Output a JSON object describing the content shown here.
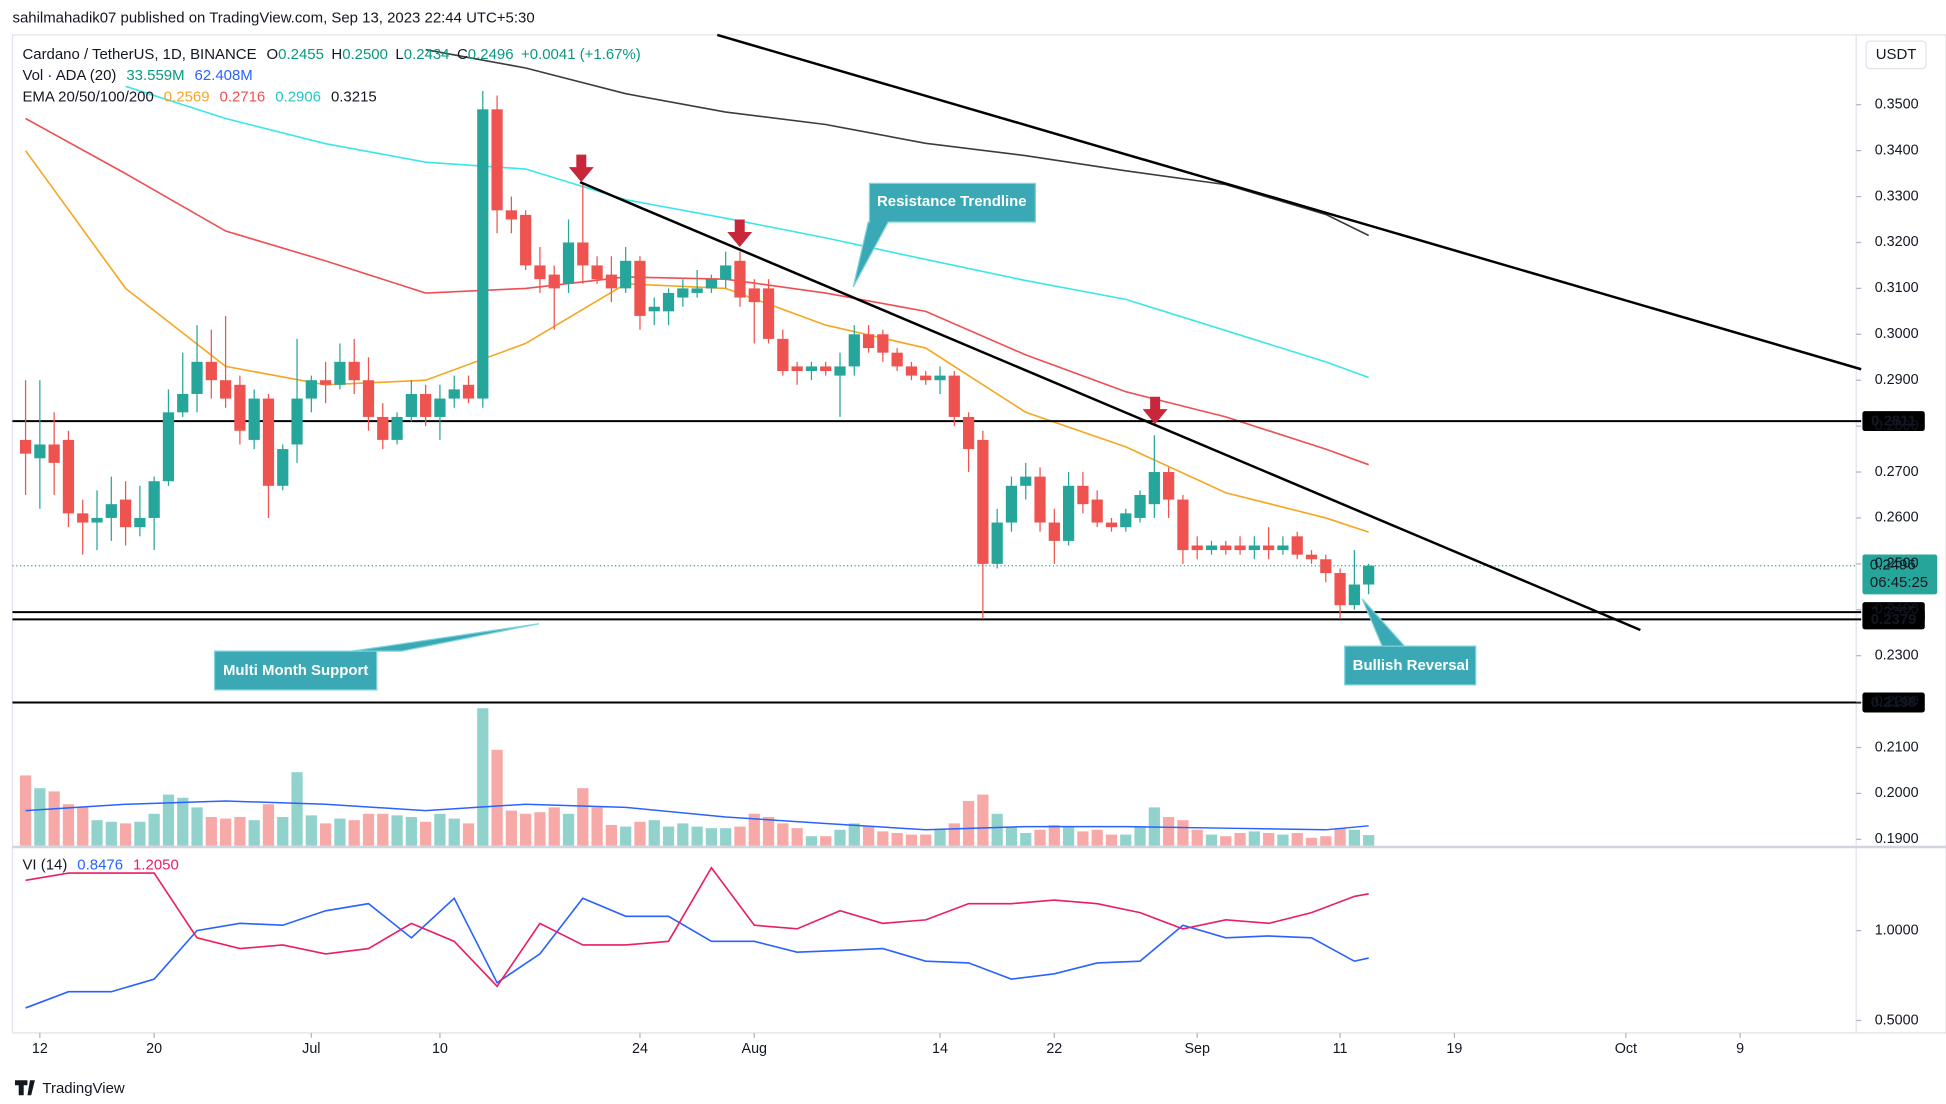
{
  "header": {
    "publisher": "sahilmahadik07 published on TradingView.com, Sep 13, 2023 22:44 UTC+5:30"
  },
  "legend": {
    "symbol": "Cardano / TetherUS, 1D, BINANCE",
    "ohlc": [
      [
        "O",
        "0.2455"
      ],
      [
        "H",
        "0.2500"
      ],
      [
        "L",
        "0.2434"
      ],
      [
        "C",
        "0.2496"
      ]
    ],
    "change": "+0.0041 (+1.67%)",
    "volume_name": "Vol · ADA (20)",
    "volume_values": [
      "33.559M",
      "62.408M"
    ],
    "ema_name": "EMA 20/50/100/200",
    "ema_values": [
      "0.2569",
      "0.2716",
      "0.2906",
      "0.3215"
    ],
    "vi_name": "VI (14)",
    "vi_values": [
      "0.8476",
      "1.2050"
    ]
  },
  "currency": "USDT",
  "countdown": "06:45:25",
  "footer": "TradingView",
  "annotations": [
    "Resistance Trendline",
    "Multi Month Support",
    "Bullish Reversal"
  ],
  "chart_data": {
    "type": "candlestick",
    "x": [
      "Jun 11",
      "Jun 12",
      "Jun 13",
      "Jun 14",
      "Jun 15",
      "Jun 16",
      "Jun 17",
      "Jun 18",
      "Jun 19",
      "Jun 20",
      "Jun 21",
      "Jun 22",
      "Jun 23",
      "Jun 24",
      "Jun 25",
      "Jun 26",
      "Jun 27",
      "Jun 28",
      "Jun 29",
      "Jun 30",
      "Jul 1",
      "Jul 2",
      "Jul 3",
      "Jul 4",
      "Jul 5",
      "Jul 6",
      "Jul 7",
      "Jul 8",
      "Jul 9",
      "Jul 10",
      "Jul 11",
      "Jul 12",
      "Jul 13",
      "Jul 14",
      "Jul 15",
      "Jul 16",
      "Jul 17",
      "Jul 18",
      "Jul 19",
      "Jul 20",
      "Jul 21",
      "Jul 22",
      "Jul 23",
      "Jul 24",
      "Jul 25",
      "Jul 26",
      "Jul 27",
      "Jul 28",
      "Jul 29",
      "Jul 30",
      "Jul 31",
      "Aug 1",
      "Aug 2",
      "Aug 3",
      "Aug 4",
      "Aug 5",
      "Aug 6",
      "Aug 7",
      "Aug 8",
      "Aug 9",
      "Aug 10",
      "Aug 11",
      "Aug 12",
      "Aug 13",
      "Aug 14",
      "Aug 15",
      "Aug 16",
      "Aug 17",
      "Aug 18",
      "Aug 19",
      "Aug 20",
      "Aug 21",
      "Aug 22",
      "Aug 23",
      "Aug 24",
      "Aug 25",
      "Aug 26",
      "Aug 27",
      "Aug 28",
      "Aug 29",
      "Aug 30",
      "Aug 31",
      "Sep 1",
      "Sep 2",
      "Sep 3",
      "Sep 4",
      "Sep 5",
      "Sep 6",
      "Sep 7",
      "Sep 8",
      "Sep 9",
      "Sep 10",
      "Sep 11",
      "Sep 12",
      "Sep 13"
    ],
    "candles": [
      [
        0.277,
        0.29,
        0.265,
        0.274
      ],
      [
        0.273,
        0.29,
        0.262,
        0.276
      ],
      [
        0.276,
        0.283,
        0.265,
        0.272
      ],
      [
        0.277,
        0.279,
        0.258,
        0.261
      ],
      [
        0.261,
        0.264,
        0.252,
        0.259
      ],
      [
        0.259,
        0.266,
        0.253,
        0.26
      ],
      [
        0.26,
        0.269,
        0.255,
        0.263
      ],
      [
        0.264,
        0.268,
        0.254,
        0.258
      ],
      [
        0.258,
        0.267,
        0.256,
        0.26
      ],
      [
        0.26,
        0.269,
        0.253,
        0.268
      ],
      [
        0.268,
        0.288,
        0.267,
        0.283
      ],
      [
        0.283,
        0.296,
        0.282,
        0.287
      ],
      [
        0.287,
        0.302,
        0.283,
        0.294
      ],
      [
        0.294,
        0.301,
        0.286,
        0.29
      ],
      [
        0.29,
        0.304,
        0.284,
        0.286
      ],
      [
        0.289,
        0.291,
        0.276,
        0.279
      ],
      [
        0.277,
        0.288,
        0.275,
        0.286
      ],
      [
        0.286,
        0.287,
        0.26,
        0.267
      ],
      [
        0.267,
        0.276,
        0.266,
        0.275
      ],
      [
        0.276,
        0.299,
        0.272,
        0.286
      ],
      [
        0.286,
        0.291,
        0.283,
        0.29
      ],
      [
        0.29,
        0.294,
        0.285,
        0.289
      ],
      [
        0.289,
        0.298,
        0.288,
        0.294
      ],
      [
        0.294,
        0.299,
        0.287,
        0.29
      ],
      [
        0.29,
        0.295,
        0.279,
        0.282
      ],
      [
        0.282,
        0.285,
        0.275,
        0.277
      ],
      [
        0.277,
        0.283,
        0.276,
        0.282
      ],
      [
        0.282,
        0.29,
        0.281,
        0.287
      ],
      [
        0.287,
        0.289,
        0.28,
        0.282
      ],
      [
        0.282,
        0.289,
        0.277,
        0.286
      ],
      [
        0.286,
        0.291,
        0.284,
        0.288
      ],
      [
        0.289,
        0.291,
        0.285,
        0.286
      ],
      [
        0.286,
        0.353,
        0.284,
        0.349
      ],
      [
        0.349,
        0.352,
        0.322,
        0.327
      ],
      [
        0.327,
        0.33,
        0.322,
        0.325
      ],
      [
        0.326,
        0.327,
        0.314,
        0.315
      ],
      [
        0.315,
        0.319,
        0.309,
        0.312
      ],
      [
        0.313,
        0.315,
        0.301,
        0.31
      ],
      [
        0.311,
        0.325,
        0.309,
        0.32
      ],
      [
        0.32,
        0.333,
        0.311,
        0.315
      ],
      [
        0.315,
        0.317,
        0.311,
        0.312
      ],
      [
        0.313,
        0.317,
        0.307,
        0.31
      ],
      [
        0.31,
        0.319,
        0.309,
        0.316
      ],
      [
        0.316,
        0.317,
        0.301,
        0.304
      ],
      [
        0.305,
        0.308,
        0.302,
        0.306
      ],
      [
        0.305,
        0.31,
        0.302,
        0.309
      ],
      [
        0.308,
        0.312,
        0.306,
        0.31
      ],
      [
        0.309,
        0.314,
        0.308,
        0.31
      ],
      [
        0.31,
        0.313,
        0.309,
        0.312
      ],
      [
        0.312,
        0.318,
        0.31,
        0.315
      ],
      [
        0.316,
        0.318,
        0.306,
        0.308
      ],
      [
        0.31,
        0.312,
        0.298,
        0.307
      ],
      [
        0.31,
        0.312,
        0.298,
        0.299
      ],
      [
        0.299,
        0.301,
        0.291,
        0.292
      ],
      [
        0.293,
        0.294,
        0.289,
        0.292
      ],
      [
        0.292,
        0.294,
        0.29,
        0.293
      ],
      [
        0.293,
        0.294,
        0.291,
        0.292
      ],
      [
        0.291,
        0.296,
        0.282,
        0.293
      ],
      [
        0.293,
        0.302,
        0.291,
        0.3
      ],
      [
        0.3,
        0.302,
        0.296,
        0.297
      ],
      [
        0.3,
        0.301,
        0.294,
        0.296
      ],
      [
        0.296,
        0.297,
        0.292,
        0.293
      ],
      [
        0.293,
        0.294,
        0.29,
        0.291
      ],
      [
        0.291,
        0.292,
        0.289,
        0.29
      ],
      [
        0.29,
        0.293,
        0.287,
        0.291
      ],
      [
        0.291,
        0.292,
        0.28,
        0.282
      ],
      [
        0.282,
        0.283,
        0.27,
        0.275
      ],
      [
        0.277,
        0.279,
        0.238,
        0.25
      ],
      [
        0.25,
        0.262,
        0.249,
        0.259
      ],
      [
        0.259,
        0.269,
        0.257,
        0.267
      ],
      [
        0.267,
        0.272,
        0.264,
        0.269
      ],
      [
        0.269,
        0.271,
        0.257,
        0.259
      ],
      [
        0.259,
        0.262,
        0.25,
        0.255
      ],
      [
        0.255,
        0.27,
        0.254,
        0.267
      ],
      [
        0.267,
        0.27,
        0.261,
        0.263
      ],
      [
        0.264,
        0.266,
        0.258,
        0.259
      ],
      [
        0.259,
        0.26,
        0.257,
        0.258
      ],
      [
        0.258,
        0.262,
        0.257,
        0.261
      ],
      [
        0.26,
        0.266,
        0.259,
        0.265
      ],
      [
        0.263,
        0.278,
        0.26,
        0.27
      ],
      [
        0.27,
        0.271,
        0.26,
        0.264
      ],
      [
        0.264,
        0.265,
        0.25,
        0.253
      ],
      [
        0.254,
        0.256,
        0.251,
        0.253
      ],
      [
        0.253,
        0.255,
        0.252,
        0.254
      ],
      [
        0.254,
        0.255,
        0.252,
        0.253
      ],
      [
        0.254,
        0.256,
        0.252,
        0.253
      ],
      [
        0.253,
        0.256,
        0.251,
        0.254
      ],
      [
        0.254,
        0.258,
        0.251,
        0.253
      ],
      [
        0.253,
        0.256,
        0.252,
        0.254
      ],
      [
        0.256,
        0.257,
        0.251,
        0.252
      ],
      [
        0.252,
        0.253,
        0.25,
        0.251
      ],
      [
        0.251,
        0.252,
        0.246,
        0.248
      ],
      [
        0.248,
        0.249,
        0.238,
        0.241
      ],
      [
        0.241,
        0.253,
        0.24,
        0.2455
      ],
      [
        0.2455,
        0.25,
        0.2434,
        0.2496
      ]
    ],
    "volume": [
      220,
      180,
      170,
      130,
      120,
      80,
      75,
      70,
      75,
      100,
      160,
      150,
      120,
      90,
      85,
      90,
      80,
      130,
      90,
      230,
      95,
      70,
      85,
      80,
      100,
      100,
      95,
      90,
      75,
      100,
      85,
      70,
      430,
      300,
      110,
      100,
      105,
      120,
      100,
      180,
      120,
      65,
      60,
      75,
      80,
      60,
      70,
      60,
      55,
      55,
      60,
      100,
      90,
      70,
      55,
      30,
      30,
      50,
      70,
      60,
      45,
      40,
      35,
      35,
      50,
      70,
      140,
      160,
      100,
      60,
      40,
      50,
      65,
      60,
      45,
      50,
      35,
      35,
      60,
      120,
      90,
      80,
      50,
      35,
      30,
      40,
      45,
      40,
      35,
      40,
      25,
      30,
      55,
      50,
      33.559
    ],
    "volume_ylim": [
      0,
      2535
    ],
    "up_color": "#26a69a",
    "down_color": "#ef5350",
    "ylim": [
      0.1886,
      0.3652
    ],
    "yticks": [
      {
        "value": 0.19,
        "label": "0.1900"
      },
      {
        "value": 0.2,
        "label": "0.2000"
      },
      {
        "value": 0.21,
        "label": "0.2100"
      },
      {
        "value": 0.22,
        "label": "0.2200"
      },
      {
        "value": 0.23,
        "label": "0.2300"
      },
      {
        "value": 0.24,
        "label": "0.2400"
      },
      {
        "value": 0.25,
        "label": "0.2500"
      },
      {
        "value": 0.26,
        "label": "0.2600"
      },
      {
        "value": 0.27,
        "label": "0.2700"
      },
      {
        "value": 0.28,
        "label": "0.2800"
      },
      {
        "value": 0.29,
        "label": "0.2900"
      },
      {
        "value": 0.3,
        "label": "0.3000"
      },
      {
        "value": 0.31,
        "label": "0.3100"
      },
      {
        "value": 0.32,
        "label": "0.3200"
      },
      {
        "value": 0.33,
        "label": "0.3300"
      },
      {
        "value": 0.34,
        "label": "0.3400"
      },
      {
        "value": 0.35,
        "label": "0.3500"
      }
    ],
    "levels": [
      0.2811,
      0.2395,
      0.2379,
      0.2198
    ],
    "last_price": 0.2496,
    "xticks": [
      {
        "value": "Jun 12",
        "label": "12"
      },
      {
        "value": "Jun 20",
        "label": "20"
      },
      {
        "value": "Jul 1",
        "label": "Jul"
      },
      {
        "value": "Jul 10",
        "label": "10"
      },
      {
        "value": "Jul 24",
        "label": "24"
      },
      {
        "value": "Aug 1",
        "label": "Aug"
      },
      {
        "value": "Aug 14",
        "label": "14"
      },
      {
        "value": "Aug 22",
        "label": "22"
      },
      {
        "value": "Sep 1",
        "label": "Sep"
      },
      {
        "value": "Sep 11",
        "label": "11"
      },
      {
        "value": "Sep 19",
        "label": "19"
      },
      {
        "value": "Oct 1",
        "label": "Oct"
      },
      {
        "value": "Oct 9",
        "label": "9"
      }
    ],
    "line_x": [
      "Jun 11",
      "Jun 18",
      "Jun 25",
      "Jul 2",
      "Jul 9",
      "Jul 16",
      "Jul 23",
      "Jul 30",
      "Aug 6",
      "Aug 13",
      "Aug 20",
      "Aug 27",
      "Sep 3",
      "Sep 10",
      "Sep 13"
    ],
    "lines": [
      {
        "color": "#f5a623",
        "values": [
          0.34,
          0.31,
          0.293,
          0.289,
          0.29,
          0.298,
          0.311,
          0.31,
          0.302,
          0.297,
          0.283,
          0.2755,
          0.2655,
          0.26,
          0.2569
        ]
      },
      {
        "color": "#ef4f52",
        "values": [
          0.347,
          0.335,
          0.3225,
          0.316,
          0.309,
          0.31,
          0.3125,
          0.312,
          0.309,
          0.305,
          0.2955,
          0.2875,
          0.282,
          0.275,
          0.2716
        ]
      },
      {
        "color": "#3ce6e6",
        "values": [
          null,
          0.354,
          0.347,
          0.3415,
          0.3375,
          0.336,
          0.3293,
          0.3253,
          0.321,
          0.3163,
          0.3117,
          0.3076,
          0.3008,
          0.294,
          0.2906
        ]
      },
      {
        "color": "#3c3c3c",
        "values": [
          null,
          null,
          null,
          null,
          0.362,
          0.358,
          0.3524,
          0.3484,
          0.3457,
          0.3416,
          0.3389,
          0.3356,
          0.3326,
          0.3261,
          0.3215
        ]
      }
    ],
    "volume_ma": {
      "color": "#2962ff",
      "values": [
        110,
        130,
        140,
        130,
        110,
        130,
        120,
        90,
        70,
        50,
        60,
        60,
        55,
        50,
        62.408
      ]
    },
    "vi": {
      "x": [
        "Jun 11",
        "Jun 14",
        "Jun 17",
        "Jun 20",
        "Jun 23",
        "Jun 26",
        "Jun 29",
        "Jul 2",
        "Jul 5",
        "Jul 8",
        "Jul 11",
        "Jul 14",
        "Jul 17",
        "Jul 20",
        "Jul 23",
        "Jul 26",
        "Jul 29",
        "Aug 1",
        "Aug 4",
        "Aug 7",
        "Aug 10",
        "Aug 13",
        "Aug 16",
        "Aug 19",
        "Aug 22",
        "Aug 25",
        "Aug 28",
        "Aug 31",
        "Sep 3",
        "Sep 6",
        "Sep 9",
        "Sep 12",
        "Sep 13"
      ],
      "ylim": [
        0.431,
        1.458
      ],
      "yticks": [
        {
          "value": 0.5,
          "label": "0.5000"
        },
        {
          "value": 1,
          "label": "1.0000"
        }
      ],
      "series": [
        {
          "color": "#2962ff",
          "values": [
            0.57,
            0.66,
            0.66,
            0.73,
            1.0,
            1.04,
            1.03,
            1.11,
            1.15,
            0.96,
            1.18,
            0.71,
            0.87,
            1.18,
            1.08,
            1.08,
            0.94,
            0.94,
            0.88,
            0.89,
            0.9,
            0.83,
            0.82,
            0.73,
            0.76,
            0.82,
            0.83,
            1.03,
            0.96,
            0.97,
            0.96,
            0.83,
            0.8476
          ]
        },
        {
          "color": "#e91e63",
          "values": [
            1.28,
            1.32,
            1.32,
            1.32,
            0.96,
            0.9,
            0.92,
            0.87,
            0.9,
            1.04,
            0.94,
            0.69,
            1.04,
            0.92,
            0.92,
            0.94,
            1.35,
            1.03,
            1.01,
            1.11,
            1.04,
            1.06,
            1.15,
            1.15,
            1.17,
            1.15,
            1.1,
            1.01,
            1.06,
            1.04,
            1.1,
            1.19,
            1.205
          ]
        }
      ]
    }
  }
}
